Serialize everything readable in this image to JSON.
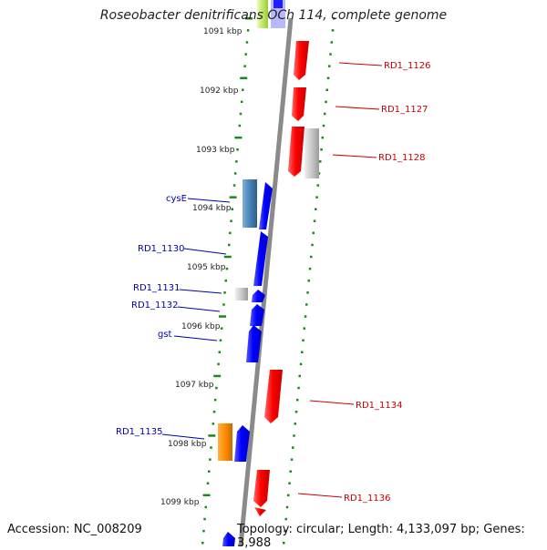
{
  "title": "Roseobacter denitrificans OCh 114, complete genome",
  "footer": {
    "accession": "Accession: NC_008209",
    "topology": "Topology: circular; Length: 4,133,097 bp; Genes: 3,988"
  },
  "colors": {
    "backbone": "#8a8a8a",
    "forward_gene": "#0000ff",
    "reverse_gene": "#ff0000",
    "tick": "#1a8a1a",
    "label_left": "#0000aa",
    "label_right": "#cc0000"
  },
  "kbp_labels": [
    {
      "text": "1091 kbp"
    },
    {
      "text": "1092 kbp"
    },
    {
      "text": "1093 kbp"
    },
    {
      "text": "1094 kbp"
    },
    {
      "text": "1095 kbp"
    },
    {
      "text": "1096 kbp"
    },
    {
      "text": "1097 kbp"
    },
    {
      "text": "1098 kbp"
    },
    {
      "text": "1099 kbp"
    }
  ],
  "gene_labels_left": [
    {
      "text": "cysE"
    },
    {
      "text": "RD1_1130"
    },
    {
      "text": "RD1_1131"
    },
    {
      "text": "RD1_1132"
    },
    {
      "text": "gst"
    },
    {
      "text": "RD1_1135"
    }
  ],
  "gene_labels_right": [
    {
      "text": "RD1_1126"
    },
    {
      "text": "RD1_1127"
    },
    {
      "text": "RD1_1128"
    },
    {
      "text": "RD1_1134"
    },
    {
      "text": "RD1_1136"
    }
  ]
}
